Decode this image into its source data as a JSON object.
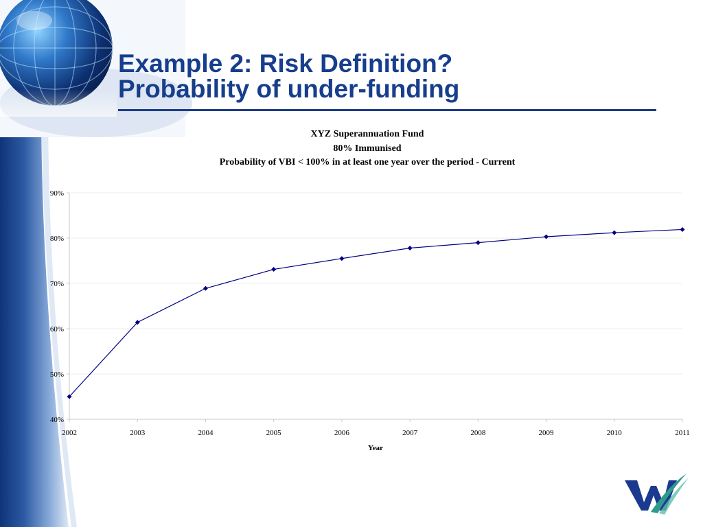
{
  "slide": {
    "title_line1": "Example 2: Risk Definition?",
    "title_line2": "Probability of under-funding",
    "colors": {
      "title": "#173e8c",
      "rule": "#1b3a86",
      "band_dark": "#123a82",
      "band_light": "#c9d8ee",
      "logo_blue": "#1a3a8f",
      "logo_teal": "#2f9a8c"
    },
    "decor": {
      "globe": "globe-icon",
      "logo": "company-logo-w"
    }
  },
  "chart_data": {
    "type": "line",
    "title_lines": [
      "XYZ Superannuation Fund",
      "80% Immunised",
      "Probability of VBI < 100% in at least one year over the period - Current"
    ],
    "xlabel": "Year",
    "ylabel": "",
    "x": [
      "2002",
      "2003",
      "2004",
      "2005",
      "2006",
      "2007",
      "2008",
      "2009",
      "2010",
      "2011"
    ],
    "series": [
      {
        "values": [
          0.45,
          0.614,
          0.689,
          0.731,
          0.755,
          0.778,
          0.79,
          0.803,
          0.812,
          0.819
        ],
        "color": "#000080",
        "marker": "diamond"
      }
    ],
    "ylim": [
      0.4,
      0.9
    ],
    "yticks": [
      0.4,
      0.5,
      0.6,
      0.7,
      0.8,
      0.9
    ],
    "ytick_labels": [
      "40%",
      "50%",
      "60%",
      "70%",
      "80%",
      "90%"
    ],
    "grid": true,
    "legend": "none"
  }
}
